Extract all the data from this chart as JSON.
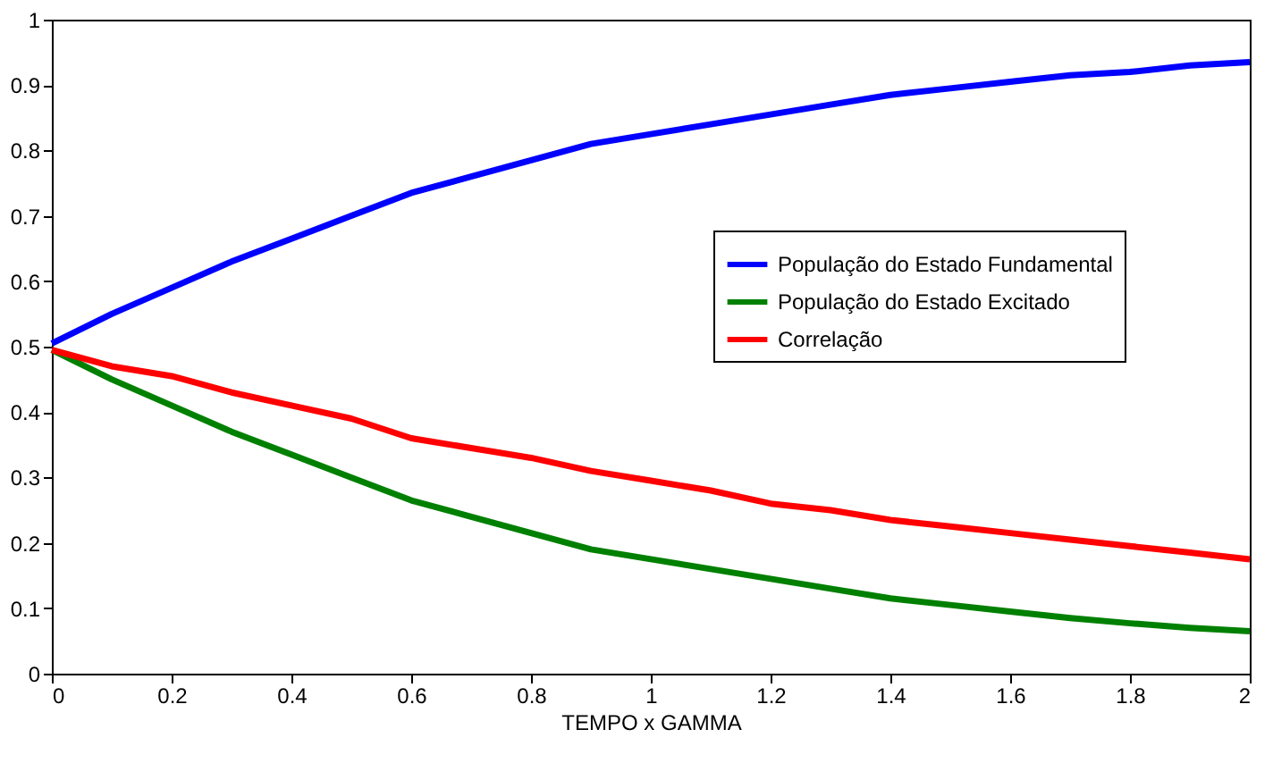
{
  "chart_data": {
    "type": "line",
    "xlabel": "TEMPO x GAMMA",
    "x": [
      0,
      0.1,
      0.2,
      0.3,
      0.4,
      0.5,
      0.6,
      0.7,
      0.8,
      0.9,
      1.0,
      1.1,
      1.2,
      1.3,
      1.4,
      1.5,
      1.6,
      1.7,
      1.8,
      1.9,
      2.0
    ],
    "series": [
      {
        "name": "População do Estado Fundamental",
        "color": "#0000ff",
        "values": [
          0.505,
          0.55,
          0.59,
          0.63,
          0.665,
          0.7,
          0.735,
          0.76,
          0.785,
          0.81,
          0.825,
          0.84,
          0.855,
          0.87,
          0.885,
          0.895,
          0.905,
          0.915,
          0.92,
          0.93,
          0.935
        ]
      },
      {
        "name": "População do Estado Excitado",
        "color": "#008000",
        "values": [
          0.495,
          0.45,
          0.41,
          0.37,
          0.335,
          0.3,
          0.265,
          0.24,
          0.215,
          0.19,
          0.175,
          0.16,
          0.145,
          0.13,
          0.115,
          0.105,
          0.095,
          0.085,
          0.077,
          0.07,
          0.065
        ]
      },
      {
        "name": "Correlação",
        "color": "#ff0000",
        "values": [
          0.495,
          0.47,
          0.455,
          0.43,
          0.41,
          0.39,
          0.36,
          0.345,
          0.33,
          0.31,
          0.295,
          0.28,
          0.26,
          0.25,
          0.235,
          0.225,
          0.215,
          0.205,
          0.195,
          0.185,
          0.175
        ]
      }
    ],
    "xlim": [
      0,
      2
    ],
    "xticks": [
      0,
      0.2,
      0.4,
      0.6,
      0.8,
      1,
      1.2,
      1.4,
      1.6,
      1.8,
      2
    ],
    "ylim": [
      0,
      1
    ],
    "yticks": [
      0,
      0.1,
      0.2,
      0.3,
      0.4,
      0.5,
      0.6,
      0.7,
      0.8,
      0.9,
      1
    ],
    "grid": false,
    "legend": "right",
    "marker": "none",
    "line_style": "solid"
  }
}
